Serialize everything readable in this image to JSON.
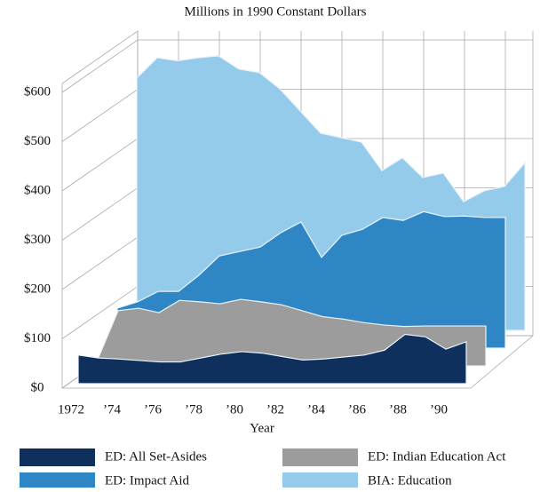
{
  "chart_data": {
    "type": "area3d",
    "title": "Millions in 1990 Constant Dollars",
    "x_label": "Year",
    "x": [
      1972,
      1973,
      1974,
      1975,
      1976,
      1977,
      1978,
      1979,
      1980,
      1981,
      1982,
      1983,
      1984,
      1985,
      1986,
      1987,
      1988,
      1989,
      1990,
      1991
    ],
    "xlim": [
      1972,
      1991
    ],
    "xticks": [
      {
        "value": 1972,
        "label": "1972"
      },
      {
        "value": 1974,
        "label": "’74"
      },
      {
        "value": 1976,
        "label": "’76"
      },
      {
        "value": 1978,
        "label": "’78"
      },
      {
        "value": 1980,
        "label": "’80"
      },
      {
        "value": 1982,
        "label": "’82"
      },
      {
        "value": 1984,
        "label": "’84"
      },
      {
        "value": 1986,
        "label": "’86"
      },
      {
        "value": 1988,
        "label": "’88"
      },
      {
        "value": 1990,
        "label": "’90"
      }
    ],
    "ylim": [
      0,
      600
    ],
    "yticks": [
      {
        "value": 0,
        "label": "$0"
      },
      {
        "value": 100,
        "label": "$100"
      },
      {
        "value": 200,
        "label": "$200"
      },
      {
        "value": 300,
        "label": "$300"
      },
      {
        "value": 400,
        "label": "$400"
      },
      {
        "value": 500,
        "label": "$500"
      },
      {
        "value": 600,
        "label": "$600"
      }
    ],
    "grid": true,
    "series": [
      {
        "name": "ED: All Set-Asides",
        "color": "#0f2f5c",
        "values": [
          58,
          52,
          50,
          47,
          44,
          44,
          52,
          60,
          65,
          62,
          55,
          48,
          50,
          54,
          58,
          68,
          100,
          95,
          70,
          85
        ]
      },
      {
        "name": "ED: Indian Education Act",
        "color": "#9c9c9c",
        "values": [
          13,
          112,
          117,
          108,
          133,
          130,
          126,
          135,
          130,
          124,
          112,
          100,
          95,
          88,
          83,
          80,
          81,
          81,
          81,
          81
        ]
      },
      {
        "name": "ED: Impact Aid",
        "color": "#2f86c4",
        "values": [
          81,
          94,
          115,
          115,
          148,
          187,
          196,
          205,
          234,
          256,
          184,
          229,
          241,
          265,
          259,
          277,
          267,
          268,
          265,
          265
        ]
      },
      {
        "name": "BIA: Education",
        "color": "#94cbea",
        "values": [
          512,
          553,
          547,
          553,
          557,
          530,
          523,
          490,
          445,
          400,
          391,
          382,
          324,
          350,
          310,
          319,
          261,
          283,
          292,
          340
        ]
      }
    ]
  }
}
